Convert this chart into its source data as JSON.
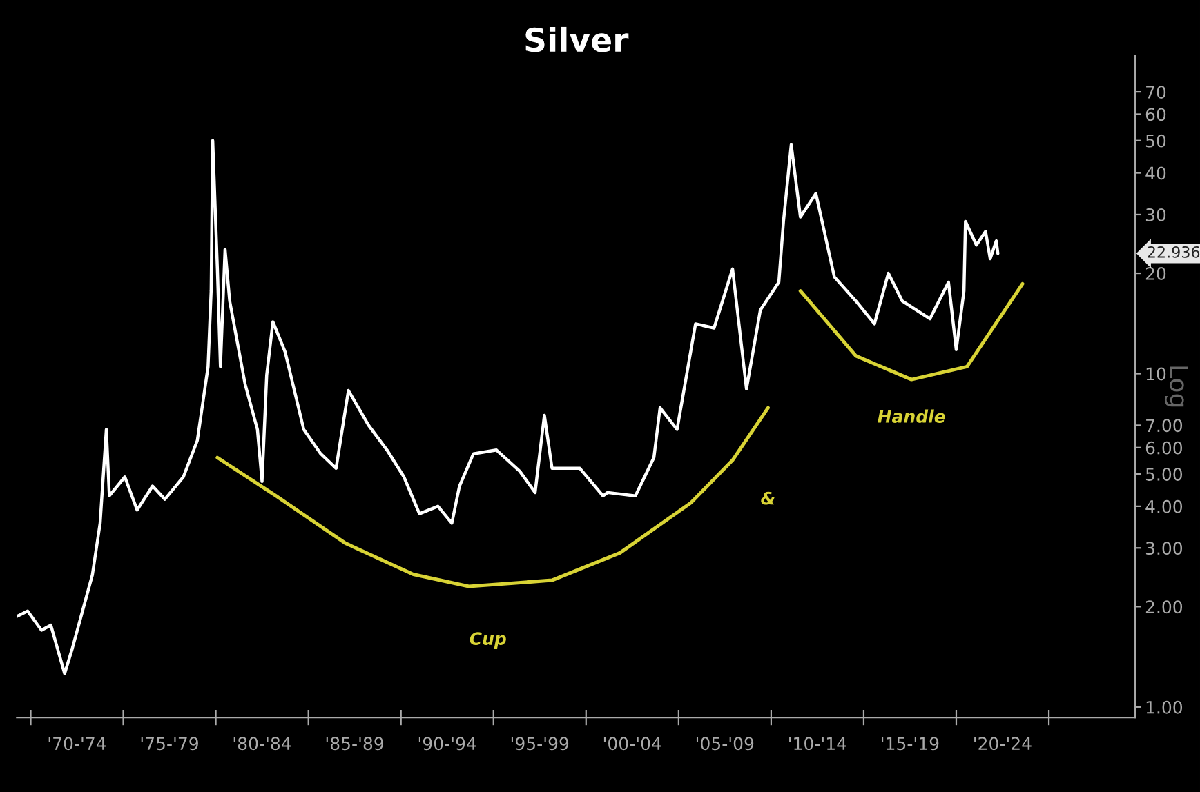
{
  "chart_data": {
    "type": "line",
    "title": "Silver",
    "ylabel": "Log",
    "log": "y",
    "xlim": [
      "1969-04",
      "2029-09"
    ],
    "ylim": [
      0.93,
      90
    ],
    "xticks": [
      {
        "value": "1970",
        "label": null
      },
      {
        "value": "1972-07",
        "label": "'70-'74"
      },
      {
        "value": "1975",
        "label": null
      },
      {
        "value": "1977-07",
        "label": "'75-'79"
      },
      {
        "value": "1980",
        "label": null
      },
      {
        "value": "1982-07",
        "label": "'80-'84"
      },
      {
        "value": "1985",
        "label": null
      },
      {
        "value": "1987-07",
        "label": "'85-'89"
      },
      {
        "value": "1990",
        "label": null
      },
      {
        "value": "1992-07",
        "label": "'90-'94"
      },
      {
        "value": "1995",
        "label": null
      },
      {
        "value": "1997-07",
        "label": "'95-'99"
      },
      {
        "value": "2000",
        "label": null
      },
      {
        "value": "2002-07",
        "label": "'00-'04"
      },
      {
        "value": "2005",
        "label": null
      },
      {
        "value": "2007-07",
        "label": "'05-'09"
      },
      {
        "value": "2010",
        "label": null
      },
      {
        "value": "2012-07",
        "label": "'10-'14"
      },
      {
        "value": "2015",
        "label": null
      },
      {
        "value": "2017-07",
        "label": "'15-'19"
      },
      {
        "value": "2020",
        "label": null
      },
      {
        "value": "2022-07",
        "label": "'20-'24"
      },
      {
        "value": "2025",
        "label": null
      }
    ],
    "yticks": [
      {
        "value": 1,
        "label": "1.00"
      },
      {
        "value": 2,
        "label": "2.00"
      },
      {
        "value": 3,
        "label": "3.00"
      },
      {
        "value": 4,
        "label": "4.00"
      },
      {
        "value": 5,
        "label": "5.00"
      },
      {
        "value": 6,
        "label": "6.00"
      },
      {
        "value": 7,
        "label": "7.00"
      },
      10,
      20,
      30,
      40,
      50,
      60,
      70
    ],
    "grid": false,
    "legend": false,
    "series": [
      {
        "color": "#ffffff",
        "x": [
          "1969-04",
          "1969-11",
          "1970-08",
          "1971-02",
          "1971-11",
          "1972-04",
          "1973-05",
          "1973-10",
          "1974-02",
          "1974-04",
          "1975-02",
          "1975-10",
          "1976-08",
          "1977-04",
          "1978-04",
          "1979-01",
          "1979-08",
          "1979-10",
          "1979-11",
          "1980-02",
          "1980-04",
          "1980-07",
          "1980-10",
          "1981-08",
          "1982-04",
          "1982-07",
          "1982-10",
          "1983-02",
          "1983-10",
          "1984-10",
          "1985-09",
          "1986-07",
          "1987-03",
          "1988-04",
          "1989-04",
          "1990-03",
          "1991-01",
          "1992-01",
          "1992-10",
          "1993-03",
          "1993-12",
          "1995-03",
          "1996-06",
          "1997-04",
          "1997-10",
          "1998-03",
          "1999-09",
          "2000-12",
          "2001-03",
          "2002-09",
          "2003-09",
          "2004-01",
          "2004-12",
          "2005-12",
          "2006-12",
          "2007-12",
          "2008-09",
          "2009-06",
          "2010-06",
          "2010-09",
          "2011-02",
          "2011-08",
          "2012-06",
          "2013-06",
          "2014-08",
          "2015-08",
          "2016-05",
          "2017-02",
          "2018-08",
          "2019-08",
          "2020-01",
          "2020-06",
          "2020-07",
          "2021-02",
          "2021-08",
          "2021-11",
          "2022-03",
          "2022-04"
        ],
        "values": [
          1.87,
          1.94,
          1.7,
          1.76,
          1.26,
          1.5,
          2.49,
          3.56,
          6.8,
          4.3,
          4.9,
          3.9,
          4.6,
          4.2,
          4.9,
          6.3,
          10.5,
          17.7,
          50,
          20.6,
          10.5,
          23.6,
          16.5,
          9.3,
          6.8,
          4.75,
          9.9,
          14.3,
          11.6,
          6.8,
          5.75,
          5.2,
          8.9,
          7.0,
          5.9,
          4.9,
          3.8,
          4.0,
          3.56,
          4.6,
          5.75,
          5.9,
          5.1,
          4.4,
          7.5,
          5.2,
          5.2,
          4.3,
          4.4,
          4.3,
          5.6,
          7.9,
          6.8,
          14.1,
          13.7,
          20.6,
          9.0,
          15.5,
          18.8,
          28.6,
          48.6,
          29.5,
          34.7,
          19.5,
          16.5,
          14.1,
          20.0,
          16.5,
          14.6,
          18.8,
          11.8,
          17.7,
          28.6,
          24.3,
          26.7,
          22.1,
          25.0,
          22.936
        ]
      },
      {
        "type": "line",
        "color": "#d8d335",
        "x": [
          "1980-02",
          "1983-04",
          "1987-01",
          "1990-09",
          "1993-09",
          "1998-03",
          "2001-11",
          "2005-09",
          "2007-12",
          "2009-11"
        ],
        "values": [
          5.6,
          4.3,
          3.1,
          2.5,
          2.3,
          2.4,
          2.9,
          4.1,
          5.5,
          7.9
        ]
      },
      {
        "type": "line",
        "color": "#d8d335",
        "x": [
          "2011-08",
          "2014-08",
          "2017-08",
          "2020-08",
          "2023-08"
        ],
        "values": [
          17.7,
          11.3,
          9.6,
          10.5,
          18.6
        ]
      }
    ],
    "annotations": [
      "Cup",
      "&",
      "Handle",
      "22.936"
    ]
  }
}
